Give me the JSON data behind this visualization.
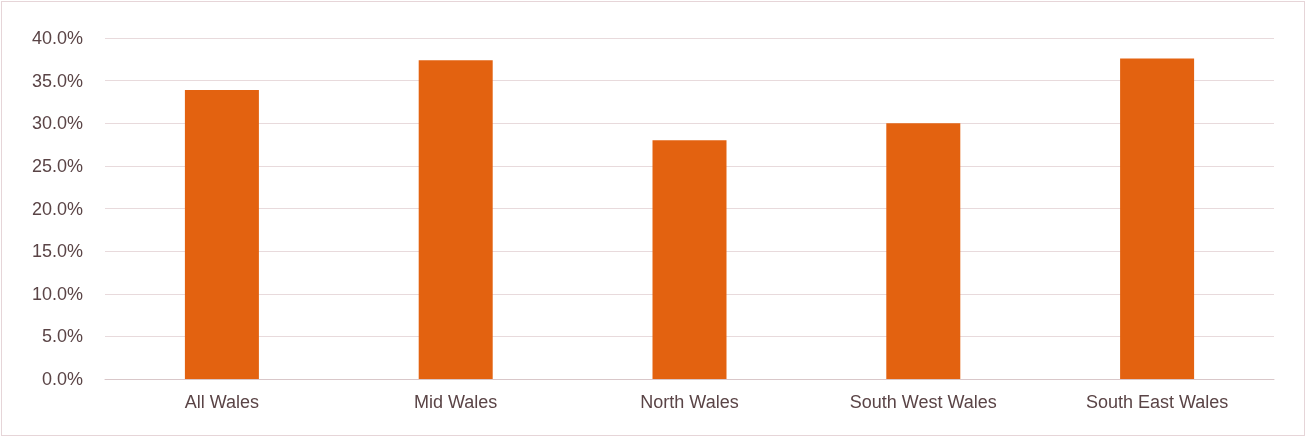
{
  "chart_data": {
    "type": "bar",
    "categories": [
      "All Wales",
      "Mid Wales",
      "North Wales",
      "South West Wales",
      "South East Wales"
    ],
    "values": [
      33.9,
      37.4,
      28.0,
      30.0,
      37.6
    ],
    "color": "#e36210",
    "ylim": [
      0,
      40
    ],
    "yticks": [
      {
        "value": 0,
        "label": "0.0%"
      },
      {
        "value": 5,
        "label": "5.0%"
      },
      {
        "value": 10,
        "label": "10.0%"
      },
      {
        "value": 15,
        "label": "15.0%"
      },
      {
        "value": 20,
        "label": "20.0%"
      },
      {
        "value": 25,
        "label": "25.0%"
      },
      {
        "value": 30,
        "label": "30.0%"
      },
      {
        "value": 35,
        "label": "35.0%"
      },
      {
        "value": 40,
        "label": "40.0%"
      }
    ],
    "grid": "y"
  }
}
